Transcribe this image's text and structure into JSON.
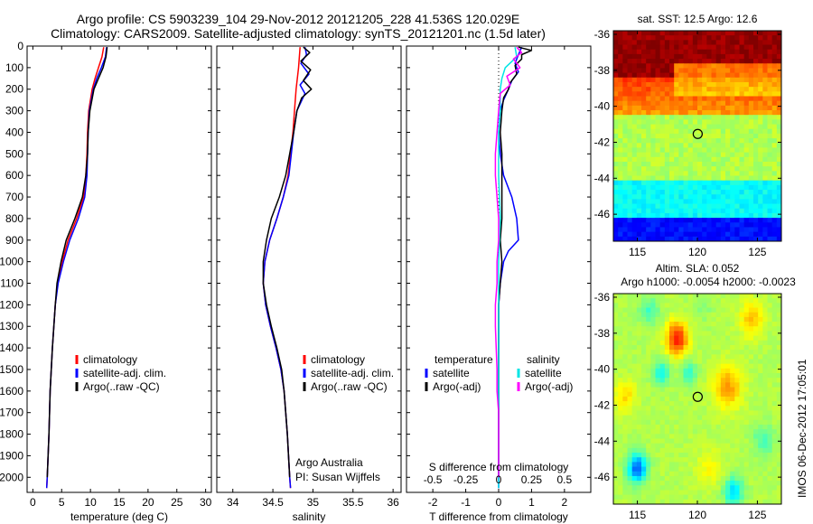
{
  "header": {
    "title_line1": "Argo profile: CS 5903239_104 29-Nov-2012 20121205_228 41.536S 120.029E",
    "title_line2": "Climatology: CARS2009. Satellite-adjusted climatology: synTS_20121201.nc (1.5d later)"
  },
  "colors": {
    "climatology": "#ff0000",
    "satellite": "#0000ff",
    "argo": "#000000",
    "s_satellite": "#00e5e5",
    "s_argo": "#ff00ff"
  },
  "chart_data": [
    {
      "type": "line",
      "id": "temperature",
      "xlabel": "temperature (deg C)",
      "xlim": [
        -1,
        31
      ],
      "xticks": [
        0,
        5,
        10,
        15,
        20,
        25,
        30
      ],
      "ylim": [
        2070,
        0
      ],
      "yticks": [
        0,
        100,
        200,
        300,
        400,
        500,
        600,
        700,
        800,
        900,
        1000,
        1100,
        1200,
        1300,
        1400,
        1500,
        1600,
        1700,
        1800,
        1900,
        2000
      ],
      "legend": [
        "climatology",
        "satellite-adj. clim.",
        "Argo(..raw -QC)"
      ],
      "series": [
        {
          "name": "climatology",
          "color": "#ff0000",
          "depth": [
            5,
            50,
            100,
            150,
            200,
            300,
            400,
            500,
            600,
            700,
            800,
            900,
            1000,
            1100,
            1200,
            1400,
            1600,
            1800,
            2000,
            2050
          ],
          "values": [
            12.3,
            12.0,
            11.4,
            10.8,
            10.3,
            9.7,
            9.5,
            9.4,
            9.2,
            8.8,
            7.6,
            6.1,
            5.1,
            4.3,
            3.9,
            3.4,
            3.0,
            2.8,
            2.5,
            2.4
          ]
        },
        {
          "name": "satellite",
          "color": "#0000ff",
          "depth": [
            5,
            50,
            100,
            150,
            200,
            300,
            400,
            500,
            600,
            700,
            800,
            900,
            1000,
            1100,
            1200,
            1400,
            1600,
            1800,
            2000,
            2050
          ],
          "values": [
            12.8,
            12.6,
            11.9,
            11.1,
            10.5,
            9.8,
            9.6,
            9.5,
            9.4,
            9.0,
            7.9,
            6.4,
            5.3,
            4.4,
            3.9,
            3.4,
            3.0,
            2.8,
            2.5,
            2.4
          ]
        },
        {
          "name": "argo",
          "color": "#000000",
          "depth": [
            5,
            50,
            100,
            150,
            200,
            300,
            400,
            500,
            600,
            700,
            800,
            900,
            1000,
            1100,
            1200,
            1400,
            1600,
            1800,
            2000
          ],
          "values": [
            12.9,
            12.7,
            12.2,
            11.4,
            10.6,
            9.9,
            9.6,
            9.5,
            9.2,
            8.6,
            7.3,
            5.8,
            4.9,
            4.2,
            3.9,
            3.4,
            3.0,
            2.8,
            2.5
          ]
        }
      ]
    },
    {
      "type": "line",
      "id": "salinity",
      "xlabel": "salinity",
      "xlim": [
        33.8,
        36.1
      ],
      "xticks": [
        34,
        34.5,
        35,
        35.5,
        36
      ],
      "xticklabels": [
        "34",
        "34.5",
        "35",
        "35.5",
        "36"
      ],
      "ylim": [
        2070,
        0
      ],
      "legend": [
        "climatology",
        "satellite-adj. clim.",
        "Argo(..raw -QC)"
      ],
      "annotation": [
        "Argo Australia",
        "PI: Susan Wijffels"
      ],
      "series": [
        {
          "name": "climatology",
          "color": "#ff0000",
          "depth": [
            5,
            100,
            200,
            300,
            400,
            500,
            600,
            700,
            800,
            900,
            1000,
            1100,
            1200,
            1300,
            1400,
            1500,
            1600,
            1800,
            2000,
            2050
          ],
          "values": [
            34.84,
            34.82,
            34.79,
            34.77,
            34.75,
            34.72,
            34.69,
            34.63,
            34.55,
            34.46,
            34.4,
            34.38,
            34.41,
            34.47,
            34.54,
            34.6,
            34.64,
            34.68,
            34.71,
            34.72
          ]
        },
        {
          "name": "satellite",
          "color": "#0000ff",
          "depth": [
            5,
            40,
            80,
            130,
            180,
            220,
            300,
            400,
            500,
            600,
            700,
            800,
            900,
            1000,
            1100,
            1200,
            1300,
            1400,
            1500,
            1600,
            1800,
            2000,
            2050
          ],
          "values": [
            34.9,
            34.92,
            34.85,
            34.95,
            34.84,
            34.9,
            34.8,
            34.76,
            34.73,
            34.7,
            34.63,
            34.55,
            34.46,
            34.4,
            34.38,
            34.41,
            34.47,
            34.54,
            34.6,
            34.64,
            34.68,
            34.71,
            34.72
          ]
        },
        {
          "name": "argo",
          "color": "#000000",
          "depth": [
            5,
            30,
            70,
            110,
            160,
            200,
            240,
            300,
            400,
            500,
            600,
            700,
            800,
            900,
            1000,
            1100,
            1200,
            1300,
            1400,
            1500,
            1600,
            1800,
            2000
          ],
          "values": [
            34.88,
            34.96,
            34.85,
            34.97,
            34.88,
            34.98,
            34.86,
            34.8,
            34.76,
            34.71,
            34.66,
            34.58,
            34.48,
            34.42,
            34.38,
            34.38,
            34.42,
            34.48,
            34.55,
            34.61,
            34.64,
            34.68,
            34.71
          ]
        }
      ]
    },
    {
      "type": "line",
      "id": "difference",
      "xlabel": "T difference from climatology",
      "xlim": [
        -2.8,
        2.8
      ],
      "xticks": [
        -2,
        -1,
        0,
        1,
        2
      ],
      "xticklabels": [
        "-2",
        "-1",
        "0",
        "1",
        "2"
      ],
      "top_xlabel": "S difference from climatology",
      "top_xticklabels": [
        "-0.5",
        "-0.25",
        "0",
        "0.25",
        "0.5"
      ],
      "top_xticks_pos": [
        -2,
        -1,
        0,
        1,
        2
      ],
      "ylim": [
        2070,
        0
      ],
      "legend_temperature": {
        "heading": "temperature",
        "items": [
          "satellite",
          "Argo(-adj)"
        ]
      },
      "legend_salinity": {
        "heading": "salinity",
        "items": [
          "satellite",
          "Argo(-adj)"
        ]
      },
      "series": [
        {
          "name": "T satellite",
          "color": "#0000ff",
          "depth": [
            5,
            40,
            80,
            120,
            160,
            200,
            250,
            300,
            400,
            500,
            600,
            700,
            800,
            900,
            950,
            1000,
            1100,
            1200,
            1500,
            2000,
            2050
          ],
          "values": [
            0.7,
            0.6,
            0.5,
            0.6,
            0.4,
            0.3,
            0.15,
            0.05,
            0.0,
            0.05,
            0.15,
            0.4,
            0.55,
            0.6,
            0.3,
            0.15,
            0.05,
            0.0,
            0.0,
            0.0,
            0.0
          ]
        },
        {
          "name": "T argo",
          "color": "#000000",
          "depth": [
            5,
            20,
            40,
            60,
            90,
            130,
            170,
            200,
            240,
            300,
            400,
            500,
            600,
            700,
            800,
            900,
            1000,
            1100,
            1200,
            1500,
            2000
          ],
          "values": [
            0.6,
            1.0,
            0.7,
            0.7,
            0.5,
            0.55,
            0.35,
            0.3,
            0.15,
            0.1,
            0.05,
            0.1,
            0.1,
            0.1,
            0.1,
            0.05,
            0.1,
            0.05,
            0.0,
            0.0,
            0.0
          ]
        },
        {
          "name": "S satellite",
          "color": "#00e5e5",
          "depth": [
            5,
            50,
            100,
            150,
            200,
            300,
            400,
            600,
            800,
            1000,
            1200,
            1500,
            2000,
            2050
          ],
          "values": [
            0.5,
            0.55,
            0.2,
            0.1,
            0.05,
            0.05,
            0.0,
            0.0,
            0.05,
            0.0,
            0.0,
            0.0,
            0.0,
            0.0
          ]
        },
        {
          "name": "S argo",
          "color": "#ff00ff",
          "depth": [
            5,
            30,
            60,
            100,
            140,
            180,
            220,
            300,
            400,
            500,
            600,
            700,
            800,
            900,
            1000,
            1100,
            1200,
            1300,
            1500,
            1600,
            1700,
            2000
          ],
          "values": [
            0.55,
            0.7,
            0.45,
            0.65,
            0.25,
            0.35,
            0.05,
            0.0,
            -0.05,
            -0.1,
            -0.1,
            -0.05,
            0.0,
            0.0,
            -0.05,
            -0.05,
            -0.1,
            -0.1,
            -0.05,
            -0.05,
            0.0,
            0.0
          ]
        }
      ]
    },
    {
      "type": "heatmap",
      "id": "sst_map",
      "title": "sat. SST: 12.5 Argo: 12.6",
      "xlim": [
        113,
        127
      ],
      "ylim": [
        -47.5,
        -35.8
      ],
      "xticks": [
        115,
        120,
        125
      ],
      "yticks": [
        -36,
        -38,
        -40,
        -42,
        -44,
        -46
      ],
      "marker": {
        "lon": 120.029,
        "lat": -41.536
      }
    },
    {
      "type": "heatmap",
      "id": "sla_map",
      "title_line1": "Altim. SLA: 0.052",
      "title_line2": "Argo h1000: -0.0054 h2000: -0.0023",
      "xlim": [
        113,
        127
      ],
      "ylim": [
        -47.5,
        -35.8
      ],
      "xticks": [
        115,
        120,
        125
      ],
      "yticks": [
        -36,
        -38,
        -40,
        -42,
        -44,
        -46
      ],
      "marker": {
        "lon": 120.029,
        "lat": -41.536
      }
    }
  ],
  "side_text": "IMOS 06-Dec-2012 17:05:01"
}
